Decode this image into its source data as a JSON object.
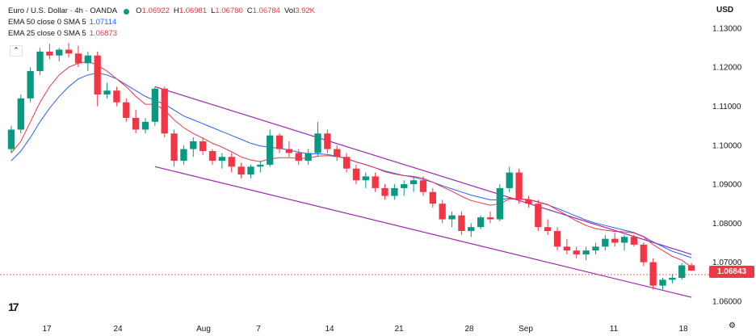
{
  "header": {
    "symbol": "Euro / U.S. Dollar · 4h · OANDA",
    "ohlc": [
      {
        "k": "O",
        "v": "1.06922"
      },
      {
        "k": "H",
        "v": "1.06981"
      },
      {
        "k": "L",
        "v": "1.06780"
      },
      {
        "k": "C",
        "v": "1.06784"
      },
      {
        "k": "Vol",
        "v": "3.92K"
      }
    ],
    "ema50": {
      "label": "EMA 50 close 0 SMA 5",
      "value": "1.07114"
    },
    "ema25": {
      "label": "EMA 25 close 0 SMA 5",
      "value": "1.06873"
    }
  },
  "currency_label": "USD",
  "last_price": "1.06843",
  "colors": {
    "up": "#089981",
    "down": "#f23645",
    "ema50": "#2962ff",
    "ema25": "#f23645",
    "channel": "#9c27b0"
  },
  "icons": {
    "logo": "tradingview-logo-icon",
    "collapse": "chevron-up-icon",
    "settings": "gear-icon"
  },
  "chart_data": {
    "type": "candlestick",
    "timeframe": "4h",
    "yaxis": {
      "side": "right",
      "ylim": [
        1.0575,
        1.1335
      ],
      "ticks": [
        "1.13000",
        "1.12000",
        "1.11000",
        "1.10000",
        "1.09000",
        "1.08000",
        "1.07000",
        "1.06000"
      ]
    },
    "xaxis": {
      "ticks": [
        "17",
        "24",
        "Aug",
        "7",
        "14",
        "21",
        "28",
        "Sep",
        "11",
        "18"
      ]
    },
    "grid": false,
    "series": [
      {
        "name": "EUR/USD",
        "candles": [
          [
            1.099,
            1.105,
            1.098,
            1.104
          ],
          [
            1.104,
            1.113,
            1.103,
            1.112
          ],
          [
            1.112,
            1.12,
            1.111,
            1.119
          ],
          [
            1.119,
            1.125,
            1.118,
            1.124
          ],
          [
            1.124,
            1.126,
            1.122,
            1.123
          ],
          [
            1.123,
            1.125,
            1.1215,
            1.1245
          ],
          [
            1.1245,
            1.1262,
            1.1225,
            1.1235
          ],
          [
            1.1235,
            1.1255,
            1.12,
            1.121
          ],
          [
            1.121,
            1.124,
            1.119,
            1.123
          ],
          [
            1.123,
            1.124,
            1.11,
            1.113
          ],
          [
            1.113,
            1.116,
            1.112,
            1.114
          ],
          [
            1.114,
            1.115,
            1.11,
            1.111
          ],
          [
            1.111,
            1.112,
            1.106,
            1.107
          ],
          [
            1.107,
            1.109,
            1.103,
            1.104
          ],
          [
            1.104,
            1.107,
            1.103,
            1.106
          ],
          [
            1.106,
            1.115,
            1.105,
            1.1145
          ],
          [
            1.1145,
            1.115,
            1.102,
            1.103
          ],
          [
            1.103,
            1.104,
            1.0945,
            1.096
          ],
          [
            1.096,
            1.1,
            1.095,
            1.099
          ],
          [
            1.099,
            1.102,
            1.097,
            1.101
          ],
          [
            1.101,
            1.102,
            1.0975,
            1.0985
          ],
          [
            1.0985,
            1.099,
            1.095,
            1.096
          ],
          [
            1.096,
            1.098,
            1.094,
            1.097
          ],
          [
            1.097,
            1.098,
            1.093,
            1.0945
          ],
          [
            1.0945,
            1.0955,
            1.0915,
            1.0925
          ],
          [
            1.0925,
            1.095,
            1.0915,
            1.0945
          ],
          [
            1.0945,
            1.096,
            1.093,
            1.095
          ],
          [
            1.095,
            1.104,
            1.0945,
            1.1025
          ],
          [
            1.1025,
            1.103,
            1.098,
            1.099
          ],
          [
            1.099,
            1.101,
            1.097,
            1.098
          ],
          [
            1.098,
            1.099,
            1.095,
            1.096
          ],
          [
            1.096,
            1.099,
            1.095,
            1.098
          ],
          [
            1.098,
            1.106,
            1.097,
            1.103
          ],
          [
            1.103,
            1.104,
            1.098,
            1.099
          ],
          [
            1.099,
            1.1,
            1.096,
            1.097
          ],
          [
            1.097,
            1.098,
            1.093,
            1.094
          ],
          [
            1.094,
            1.095,
            1.09,
            1.091
          ],
          [
            1.091,
            1.093,
            1.089,
            1.092
          ],
          [
            1.092,
            1.093,
            1.088,
            1.089
          ],
          [
            1.089,
            1.09,
            1.086,
            1.087
          ],
          [
            1.087,
            1.09,
            1.086,
            1.089
          ],
          [
            1.089,
            1.091,
            1.087,
            1.09
          ],
          [
            1.09,
            1.092,
            1.088,
            1.091
          ],
          [
            1.091,
            1.092,
            1.087,
            1.088
          ],
          [
            1.088,
            1.089,
            1.084,
            1.085
          ],
          [
            1.085,
            1.086,
            1.08,
            1.081
          ],
          [
            1.081,
            1.083,
            1.079,
            1.082
          ],
          [
            1.082,
            1.083,
            1.077,
            1.078
          ],
          [
            1.078,
            1.08,
            1.0765,
            1.079
          ],
          [
            1.079,
            1.082,
            1.0785,
            1.0815
          ],
          [
            1.0815,
            1.083,
            1.08,
            1.081
          ],
          [
            1.081,
            1.09,
            1.0805,
            1.089
          ],
          [
            1.089,
            1.0945,
            1.088,
            1.093
          ],
          [
            1.093,
            1.094,
            1.085,
            1.086
          ],
          [
            1.086,
            1.087,
            1.084,
            1.085
          ],
          [
            1.085,
            1.086,
            1.078,
            1.079
          ],
          [
            1.079,
            1.081,
            1.077,
            1.078
          ],
          [
            1.078,
            1.079,
            1.073,
            1.074
          ],
          [
            1.074,
            1.076,
            1.072,
            1.073
          ],
          [
            1.073,
            1.074,
            1.071,
            1.072
          ],
          [
            1.072,
            1.074,
            1.0705,
            1.073
          ],
          [
            1.073,
            1.075,
            1.072,
            1.074
          ],
          [
            1.074,
            1.077,
            1.073,
            1.076
          ],
          [
            1.076,
            1.0775,
            1.074,
            1.075
          ],
          [
            1.075,
            1.077,
            1.073,
            1.0765
          ],
          [
            1.0765,
            1.077,
            1.074,
            1.0745
          ],
          [
            1.0745,
            1.075,
            1.069,
            1.07
          ],
          [
            1.07,
            1.071,
            1.063,
            1.064
          ],
          [
            1.064,
            1.066,
            1.063,
            1.0655
          ],
          [
            1.0655,
            1.067,
            1.0645,
            1.066
          ],
          [
            1.066,
            1.0698,
            1.0655,
            1.0692
          ],
          [
            1.06922,
            1.06981,
            1.0678,
            1.06784
          ]
        ]
      },
      {
        "name": "EMA 50",
        "values": [
          1.096,
          1.0985,
          1.102,
          1.106,
          1.1095,
          1.1125,
          1.115,
          1.117,
          1.118,
          1.1185,
          1.118,
          1.117,
          1.1155,
          1.114,
          1.1125,
          1.1115,
          1.1105,
          1.109,
          1.1075,
          1.1065,
          1.1055,
          1.1045,
          1.1035,
          1.1025,
          1.1015,
          1.1005,
          1.0998,
          1.0995,
          1.0992,
          1.0988,
          1.0982,
          1.0978,
          1.0978,
          1.0976,
          1.0972,
          1.0965,
          1.0957,
          1.095,
          1.0942,
          1.0934,
          1.0928,
          1.0922,
          1.0918,
          1.0912,
          1.0905,
          1.0896,
          1.0888,
          1.088,
          1.0872,
          1.0866,
          1.086,
          1.086,
          1.0864,
          1.0862,
          1.086,
          1.0854,
          1.0847,
          1.0838,
          1.0828,
          1.0818,
          1.0808,
          1.08,
          1.0794,
          1.0788,
          1.0782,
          1.0776,
          1.0766,
          1.0752,
          1.074,
          1.0728,
          1.072,
          1.07114
        ]
      },
      {
        "name": "EMA 25",
        "values": [
          1.098,
          1.101,
          1.106,
          1.111,
          1.115,
          1.118,
          1.12,
          1.121,
          1.1215,
          1.1205,
          1.119,
          1.117,
          1.115,
          1.1125,
          1.1105,
          1.1105,
          1.109,
          1.1065,
          1.1045,
          1.103,
          1.1018,
          1.1005,
          1.0995,
          1.0983,
          1.097,
          1.0962,
          1.0958,
          1.0965,
          1.0968,
          1.0968,
          1.0966,
          1.0967,
          1.0972,
          1.0973,
          1.0971,
          1.0966,
          1.0957,
          1.095,
          1.0942,
          1.0932,
          1.0926,
          1.0922,
          1.092,
          1.0915,
          1.0905,
          1.0893,
          1.0882,
          1.0869,
          1.0858,
          1.0852,
          1.0846,
          1.085,
          1.0862,
          1.0862,
          1.0861,
          1.0855,
          1.0848,
          1.0834,
          1.082,
          1.0806,
          1.0794,
          1.0786,
          1.0782,
          1.0779,
          1.0778,
          1.0775,
          1.0765,
          1.0745,
          1.073,
          1.0715,
          1.0705,
          1.06873
        ]
      },
      {
        "name": "Channel upper",
        "type": "line",
        "points": [
          [
            15,
            1.115
          ],
          [
            71,
            1.072
          ]
        ]
      },
      {
        "name": "Channel lower",
        "type": "line",
        "points": [
          [
            15,
            1.0945
          ],
          [
            71,
            1.061
          ]
        ]
      }
    ]
  }
}
